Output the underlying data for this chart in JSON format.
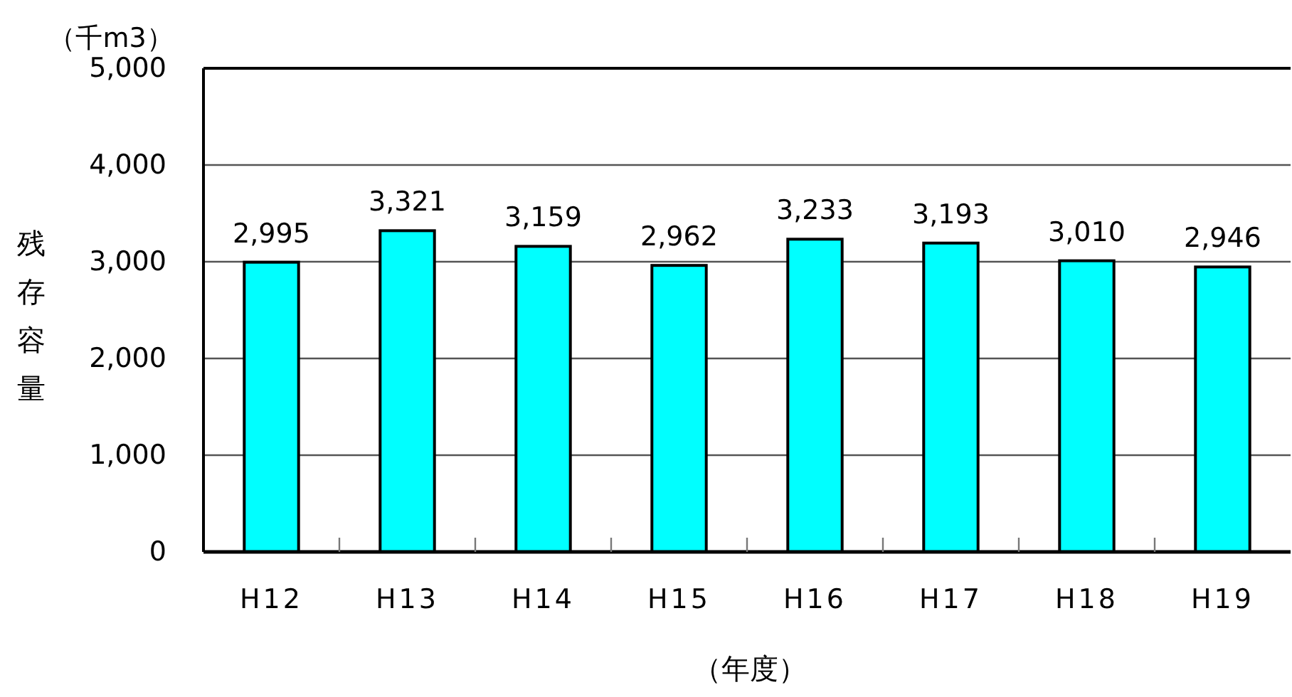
{
  "chart_data": {
    "type": "bar",
    "categories": [
      "H12",
      "H13",
      "H14",
      "H15",
      "H16",
      "H17",
      "H18",
      "H19"
    ],
    "values": [
      2995,
      3321,
      3159,
      2962,
      3233,
      3193,
      3010,
      2946
    ],
    "value_labels": [
      "2,995",
      "3,321",
      "3,159",
      "2,962",
      "3,233",
      "3,193",
      "3,010",
      "2,946"
    ],
    "color": "#00ffff",
    "ylabel": "残存容量",
    "xlabel": "（年度）",
    "annotations": [
      "（千m3）"
    ],
    "ylim": [
      0,
      5000
    ],
    "yticks": [
      {
        "value": 0,
        "label": "0"
      },
      {
        "value": 1000,
        "label": "1,000"
      },
      {
        "value": 2000,
        "label": "2,000"
      },
      {
        "value": 3000,
        "label": "3,000"
      },
      {
        "value": 4000,
        "label": "4,000"
      },
      {
        "value": 5000,
        "label": "5,000"
      }
    ],
    "grid": "y"
  }
}
